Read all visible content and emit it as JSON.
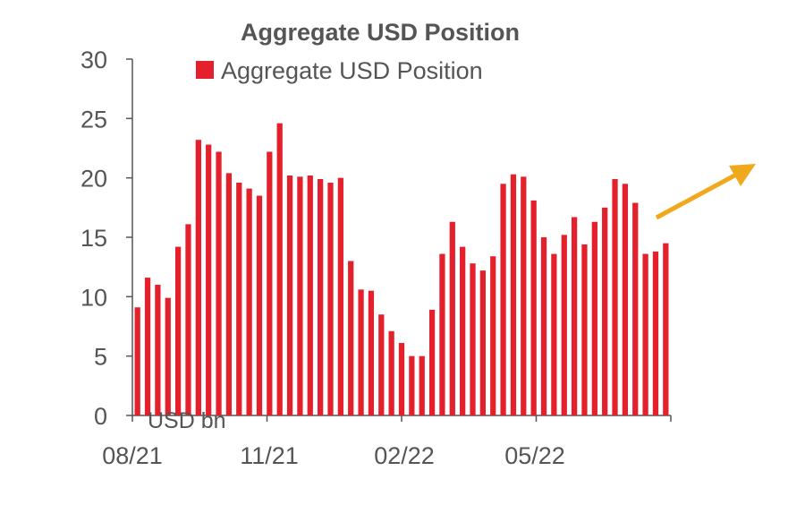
{
  "chart_data": {
    "type": "bar",
    "title": "Aggregate USD Position",
    "ylabel": "USD bn",
    "xlabel": "",
    "ylim": [
      0,
      30
    ],
    "yticks": [
      0,
      5,
      10,
      15,
      20,
      25,
      30
    ],
    "xtick_labels": [
      "08/21",
      "11/21",
      "02/22",
      "05/22"
    ],
    "legend_position": "top",
    "grid": false,
    "series": [
      {
        "name": "Aggregate USD Position",
        "color": "#e3202b",
        "values": [
          9.1,
          11.6,
          11.0,
          9.9,
          14.2,
          16.1,
          23.2,
          22.8,
          22.2,
          20.4,
          19.6,
          19.1,
          18.5,
          22.2,
          24.6,
          20.2,
          20.1,
          20.2,
          19.9,
          19.6,
          20.0,
          13.0,
          10.6,
          10.5,
          8.5,
          7.1,
          6.1,
          5.0,
          5.0,
          8.9,
          13.6,
          16.3,
          14.2,
          12.8,
          12.2,
          13.4,
          19.5,
          20.3,
          20.1,
          18.1,
          15.0,
          13.6,
          15.2,
          16.7,
          14.4,
          16.3,
          17.5,
          19.9,
          19.5,
          17.9,
          13.6,
          13.8,
          14.5
        ]
      }
    ],
    "annotation": {
      "type": "arrow",
      "direction": "up-right",
      "color": "#f0a81c"
    }
  }
}
